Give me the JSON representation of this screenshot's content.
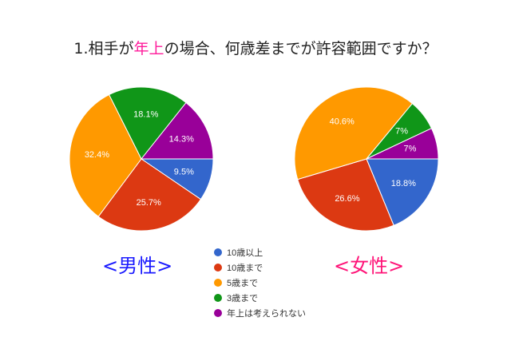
{
  "title": {
    "prefix": "1.相手が",
    "highlight": "年上",
    "suffix": "の場合、何歳差までが許容範囲ですか？",
    "highlight_color": "#ff1c9b"
  },
  "labels": {
    "male": "<男性>",
    "female": "<女性>",
    "male_color": "#1a1aff",
    "female_color": "#ff1478"
  },
  "legend": [
    {
      "label": "10歳以上",
      "color": "#3366cc"
    },
    {
      "label": "10歳まで",
      "color": "#dc3912"
    },
    {
      "label": "5歳まで",
      "color": "#ff9900"
    },
    {
      "label": "3歳まで",
      "color": "#109618"
    },
    {
      "label": "年上は考えられない",
      "color": "#990099"
    }
  ],
  "chart_data": [
    {
      "type": "pie",
      "title": "<男性>",
      "categories": [
        "10歳以上",
        "10歳まで",
        "5歳まで",
        "3歳まで",
        "年上は考えられない"
      ],
      "values": [
        9.5,
        25.7,
        32.4,
        18.1,
        14.3
      ],
      "labels": [
        "9.5%",
        "25.7%",
        "32.4%",
        "18.1%",
        "14.3%"
      ],
      "colors": [
        "#3366cc",
        "#dc3912",
        "#ff9900",
        "#109618",
        "#990099"
      ],
      "legend_position": "bottom-center"
    },
    {
      "type": "pie",
      "title": "<女性>",
      "categories": [
        "10歳以上",
        "10歳まで",
        "5歳まで",
        "3歳まで",
        "年上は考えられない"
      ],
      "values": [
        18.8,
        26.6,
        40.6,
        7,
        7
      ],
      "labels": [
        "18.8%",
        "26.6%",
        "40.6%",
        "7%",
        "7%"
      ],
      "colors": [
        "#3366cc",
        "#dc3912",
        "#ff9900",
        "#109618",
        "#990099"
      ],
      "legend_position": "bottom-center"
    }
  ]
}
